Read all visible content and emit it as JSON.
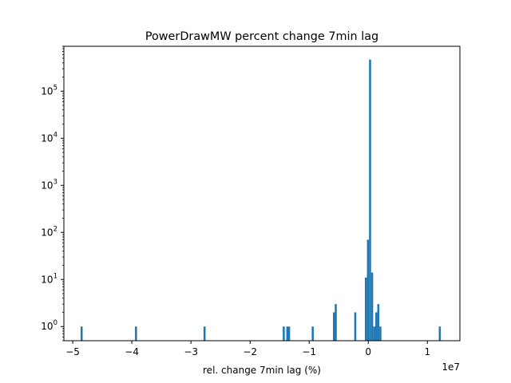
{
  "chart_data": {
    "type": "bar",
    "title": "PowerDrawMW percent change 7min lag",
    "xlabel": "rel. change 7min lag (%)",
    "ylabel": "",
    "x_offset_label": "1e7",
    "x_scale_factor": 10000000,
    "y_scale": "log",
    "xlim": [
      -5.15,
      1.55
    ],
    "ylim": [
      0.5,
      900000
    ],
    "x_ticks": [
      -5,
      -4,
      -3,
      -2,
      -1,
      0,
      1
    ],
    "x_tick_labels": [
      "−5",
      "−4",
      "−3",
      "−2",
      "−1",
      "0",
      "1"
    ],
    "y_ticks": [
      1,
      10,
      100,
      1000,
      10000,
      100000
    ],
    "y_tick_labels": [
      "10^0",
      "10^1",
      "10^2",
      "10^3",
      "10^4",
      "10^5"
    ],
    "bin_width": 0.0345,
    "bar_color": "#1f77b4",
    "grid": false,
    "bins": [
      {
        "x": -4.85,
        "count": 1
      },
      {
        "x": -3.93,
        "count": 1
      },
      {
        "x": -2.77,
        "count": 1
      },
      {
        "x": -1.43,
        "count": 1
      },
      {
        "x": -1.37,
        "count": 1
      },
      {
        "x": -1.34,
        "count": 1
      },
      {
        "x": -0.94,
        "count": 1
      },
      {
        "x": -0.58,
        "count": 2
      },
      {
        "x": -0.55,
        "count": 3
      },
      {
        "x": -0.22,
        "count": 2
      },
      {
        "x": -0.04,
        "count": 11
      },
      {
        "x": -0.005,
        "count": 70
      },
      {
        "x": 0.03,
        "count": 470000
      },
      {
        "x": 0.065,
        "count": 14
      },
      {
        "x": 0.1,
        "count": 1
      },
      {
        "x": 0.135,
        "count": 2
      },
      {
        "x": 0.17,
        "count": 3
      },
      {
        "x": 0.205,
        "count": 1
      },
      {
        "x": 1.21,
        "count": 1
      }
    ]
  }
}
